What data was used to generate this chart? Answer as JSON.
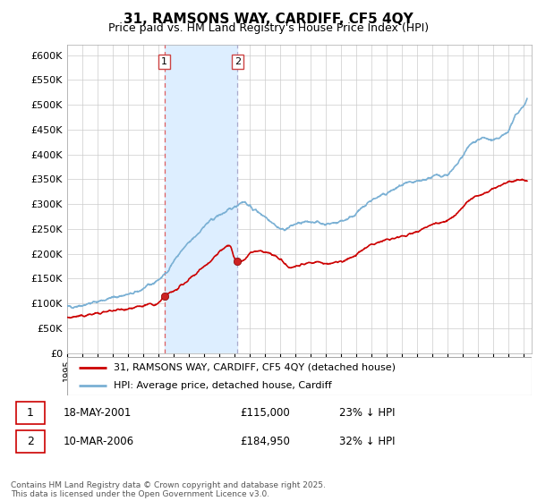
{
  "title": "31, RAMSONS WAY, CARDIFF, CF5 4QY",
  "subtitle": "Price paid vs. HM Land Registry's House Price Index (HPI)",
  "background_color": "#ffffff",
  "grid_color": "#cccccc",
  "hpi_color": "#7ab0d4",
  "price_color": "#cc0000",
  "shaded_color": "#ddeeff",
  "sale1_date_num": 2001.38,
  "sale2_date_num": 2006.19,
  "legend_line1": "31, RAMSONS WAY, CARDIFF, CF5 4QY (detached house)",
  "legend_line2": "HPI: Average price, detached house, Cardiff",
  "footer": "Contains HM Land Registry data © Crown copyright and database right 2025.\nThis data is licensed under the Open Government Licence v3.0.",
  "ylim": [
    0,
    620000
  ],
  "xlim_start": 1995.0,
  "xlim_end": 2025.5,
  "hpi_nodes_x": [
    1995.0,
    1996.0,
    1997.0,
    1997.5,
    1998.0,
    1999.0,
    1999.5,
    2000.0,
    2000.5,
    2001.0,
    2001.5,
    2002.0,
    2002.5,
    2003.0,
    2003.5,
    2004.0,
    2004.5,
    2005.0,
    2005.25,
    2005.5,
    2005.75,
    2006.0,
    2006.25,
    2006.5,
    2007.0,
    2007.5,
    2008.0,
    2008.5,
    2009.0,
    2009.5,
    2010.0,
    2010.5,
    2011.0,
    2011.5,
    2012.0,
    2012.5,
    2013.0,
    2013.5,
    2014.0,
    2014.5,
    2015.0,
    2015.5,
    2016.0,
    2016.5,
    2017.0,
    2017.5,
    2018.0,
    2018.5,
    2019.0,
    2019.5,
    2020.0,
    2020.5,
    2021.0,
    2021.5,
    2022.0,
    2022.5,
    2023.0,
    2023.5,
    2024.0,
    2024.5,
    2025.0,
    2025.2
  ],
  "hpi_nodes_y": [
    93000,
    97000,
    104000,
    108000,
    112000,
    118000,
    122000,
    130000,
    138000,
    148000,
    162000,
    185000,
    205000,
    222000,
    238000,
    255000,
    268000,
    278000,
    282000,
    285000,
    290000,
    295000,
    300000,
    305000,
    295000,
    285000,
    275000,
    263000,
    250000,
    252000,
    260000,
    262000,
    265000,
    263000,
    260000,
    262000,
    266000,
    272000,
    282000,
    295000,
    308000,
    315000,
    322000,
    330000,
    338000,
    342000,
    345000,
    350000,
    355000,
    358000,
    360000,
    375000,
    398000,
    420000,
    430000,
    432000,
    428000,
    435000,
    450000,
    480000,
    500000,
    510000
  ],
  "price_nodes_x": [
    1995.0,
    1995.5,
    1996.0,
    1996.5,
    1997.0,
    1997.5,
    1998.0,
    1998.5,
    1999.0,
    1999.5,
    2000.0,
    2000.5,
    2001.0,
    2001.38,
    2001.5,
    2002.0,
    2002.5,
    2003.0,
    2003.5,
    2004.0,
    2004.5,
    2005.0,
    2005.25,
    2005.5,
    2005.75,
    2006.0,
    2006.19,
    2006.5,
    2007.0,
    2007.5,
    2008.0,
    2008.5,
    2009.0,
    2009.5,
    2010.0,
    2010.5,
    2011.0,
    2011.5,
    2012.0,
    2012.5,
    2013.0,
    2013.5,
    2014.0,
    2014.5,
    2015.0,
    2015.5,
    2016.0,
    2016.5,
    2017.0,
    2017.5,
    2018.0,
    2018.5,
    2019.0,
    2019.5,
    2020.0,
    2020.5,
    2021.0,
    2021.5,
    2022.0,
    2022.5,
    2023.0,
    2023.5,
    2024.0,
    2024.5,
    2025.0,
    2025.2
  ],
  "price_nodes_y": [
    72000,
    73000,
    75000,
    78000,
    80000,
    83000,
    86000,
    88000,
    90000,
    92000,
    95000,
    98000,
    100000,
    115000,
    118000,
    125000,
    135000,
    148000,
    162000,
    175000,
    188000,
    205000,
    210000,
    215000,
    212000,
    190000,
    184950,
    185000,
    200000,
    205000,
    203000,
    198000,
    188000,
    175000,
    175000,
    180000,
    182000,
    183000,
    180000,
    182000,
    185000,
    190000,
    198000,
    210000,
    218000,
    225000,
    228000,
    232000,
    235000,
    240000,
    245000,
    252000,
    260000,
    262000,
    268000,
    278000,
    295000,
    310000,
    318000,
    322000,
    330000,
    338000,
    345000,
    348000,
    350000,
    348000
  ]
}
